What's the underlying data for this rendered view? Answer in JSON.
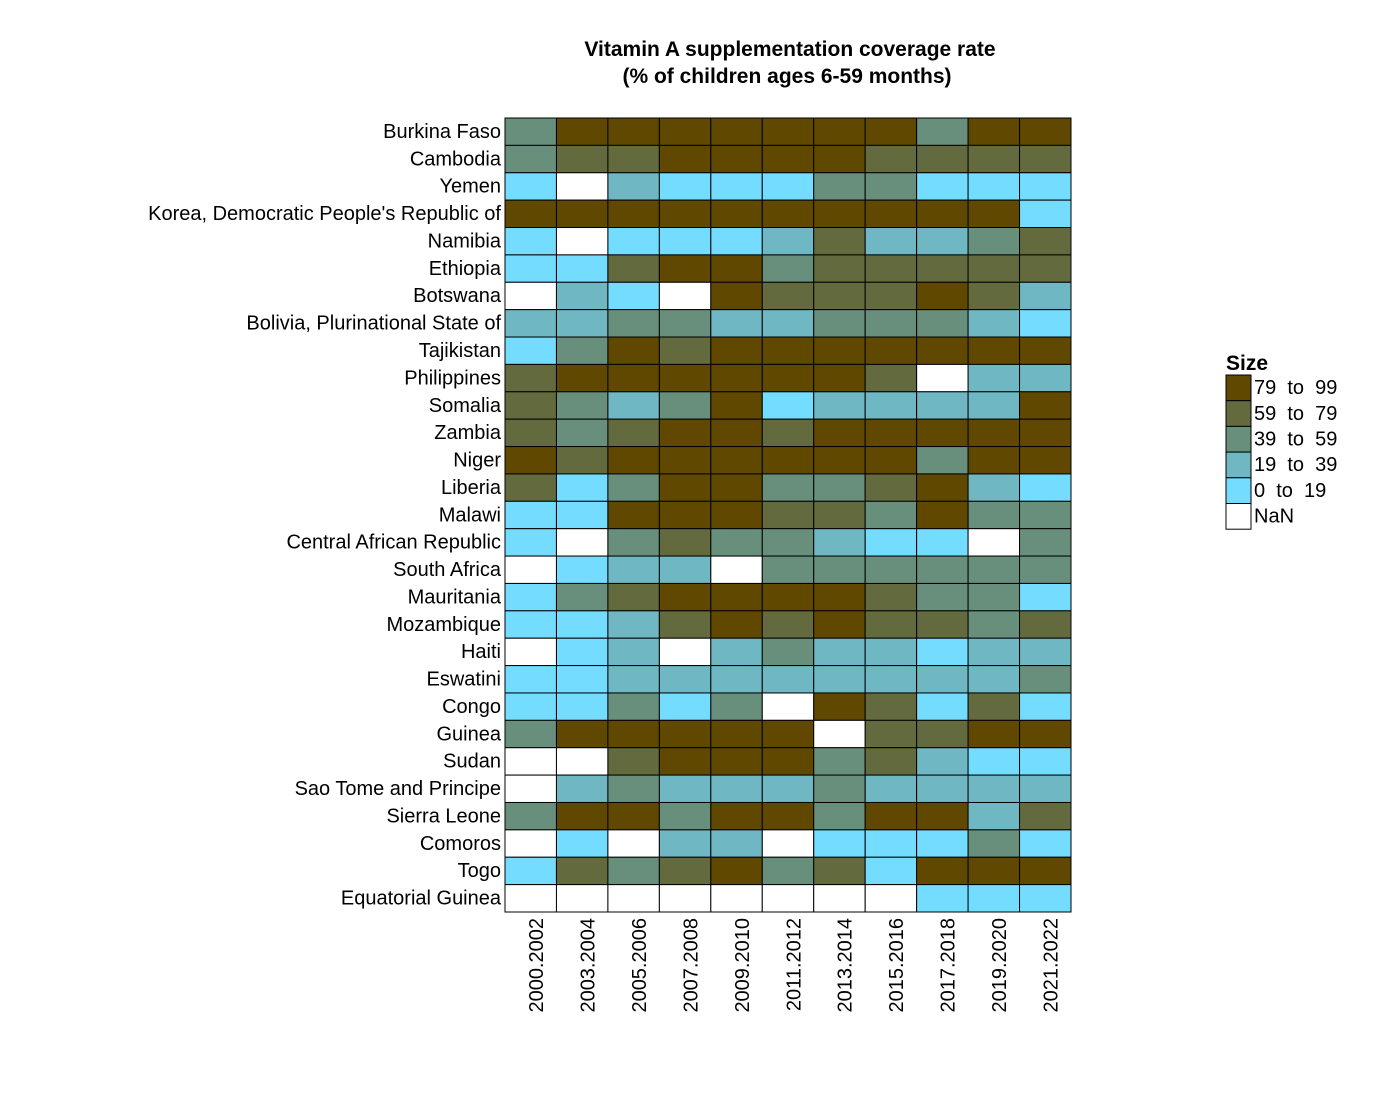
{
  "chart_data": {
    "type": "heatmap",
    "title": "Vitamin A supplementation coverage rate",
    "subtitle": "(% of children ages 6-59 months)",
    "x": [
      "2000.2002",
      "2003.2004",
      "2005.2006",
      "2007.2008",
      "2009.2010",
      "2011.2012",
      "2013.2014",
      "2015.2016",
      "2017.2018",
      "2019.2020",
      "2021.2022"
    ],
    "y": [
      "Burkina Faso",
      "Cambodia",
      "Yemen",
      "Korea, Democratic People's Republic of",
      "Namibia",
      "Ethiopia",
      "Botswana",
      "Bolivia, Plurinational State of",
      "Tajikistan",
      "Philippines",
      "Somalia",
      "Zambia",
      "Niger",
      "Liberia",
      "Malawi",
      "Central African Republic",
      "South Africa",
      "Mauritania",
      "Mozambique",
      "Haiti",
      "Eswatini",
      "Congo",
      "Guinea",
      "Sudan",
      "Sao Tome and Principe",
      "Sierra Leone",
      "Comoros",
      "Togo",
      "Equatorial Guinea"
    ],
    "values": [
      [
        49,
        89,
        89,
        89,
        89,
        89,
        89,
        89,
        49,
        89,
        89
      ],
      [
        49,
        69,
        69,
        89,
        89,
        89,
        89,
        69,
        69,
        69,
        69
      ],
      [
        9,
        null,
        29,
        9,
        9,
        9,
        49,
        49,
        9,
        9,
        9
      ],
      [
        89,
        89,
        89,
        89,
        89,
        89,
        89,
        89,
        89,
        89,
        9
      ],
      [
        9,
        null,
        9,
        9,
        9,
        29,
        69,
        29,
        29,
        49,
        69
      ],
      [
        9,
        9,
        69,
        89,
        89,
        49,
        69,
        69,
        69,
        69,
        69
      ],
      [
        null,
        29,
        9,
        null,
        89,
        69,
        69,
        69,
        89,
        69,
        29
      ],
      [
        29,
        29,
        49,
        49,
        29,
        29,
        49,
        49,
        49,
        29,
        9
      ],
      [
        9,
        49,
        89,
        69,
        89,
        89,
        89,
        89,
        89,
        89,
        89
      ],
      [
        69,
        89,
        89,
        89,
        89,
        89,
        89,
        69,
        null,
        29,
        29
      ],
      [
        69,
        49,
        29,
        49,
        89,
        9,
        29,
        29,
        29,
        29,
        89
      ],
      [
        69,
        49,
        69,
        89,
        89,
        69,
        89,
        89,
        89,
        89,
        89
      ],
      [
        89,
        69,
        89,
        89,
        89,
        89,
        89,
        89,
        49,
        89,
        89
      ],
      [
        69,
        9,
        49,
        89,
        89,
        49,
        49,
        69,
        89,
        29,
        9
      ],
      [
        9,
        9,
        89,
        89,
        89,
        69,
        69,
        49,
        89,
        49,
        49
      ],
      [
        9,
        null,
        49,
        69,
        49,
        49,
        29,
        9,
        9,
        null,
        49
      ],
      [
        null,
        9,
        29,
        29,
        null,
        49,
        49,
        49,
        49,
        49,
        49
      ],
      [
        9,
        49,
        69,
        89,
        89,
        89,
        89,
        69,
        49,
        49,
        9
      ],
      [
        9,
        9,
        29,
        69,
        89,
        69,
        89,
        69,
        69,
        49,
        69
      ],
      [
        null,
        9,
        29,
        null,
        29,
        49,
        29,
        29,
        9,
        29,
        29
      ],
      [
        9,
        9,
        29,
        29,
        29,
        29,
        29,
        29,
        29,
        29,
        49
      ],
      [
        9,
        9,
        49,
        9,
        49,
        null,
        89,
        69,
        9,
        69,
        9
      ],
      [
        49,
        89,
        89,
        89,
        89,
        89,
        null,
        69,
        69,
        89,
        89
      ],
      [
        null,
        null,
        69,
        89,
        89,
        89,
        49,
        69,
        29,
        9,
        9
      ],
      [
        null,
        29,
        49,
        29,
        29,
        29,
        49,
        29,
        29,
        29,
        29
      ],
      [
        49,
        89,
        89,
        49,
        89,
        89,
        49,
        89,
        89,
        29,
        69
      ],
      [
        null,
        9,
        null,
        29,
        29,
        null,
        9,
        9,
        9,
        49,
        9
      ],
      [
        9,
        69,
        49,
        69,
        89,
        49,
        69,
        9,
        89,
        89,
        89
      ],
      [
        null,
        null,
        null,
        null,
        null,
        null,
        null,
        null,
        9,
        9,
        9
      ]
    ],
    "legend": {
      "title": "Size",
      "bins": [
        {
          "label": "79  to  99",
          "min": 79,
          "max": 99,
          "color": "#604800"
        },
        {
          "label": "59  to  79",
          "min": 59,
          "max": 79,
          "color": "#636a3e"
        },
        {
          "label": "39  to  59",
          "min": 39,
          "max": 59,
          "color": "#688f7c"
        },
        {
          "label": "19  to  39",
          "min": 19,
          "max": 39,
          "color": "#6fb7c2"
        },
        {
          "label": "0  to  19",
          "min": 0,
          "max": 19,
          "color": "#73dcff"
        }
      ],
      "nan": {
        "label": "NaN",
        "color": "#ffffff"
      }
    }
  }
}
